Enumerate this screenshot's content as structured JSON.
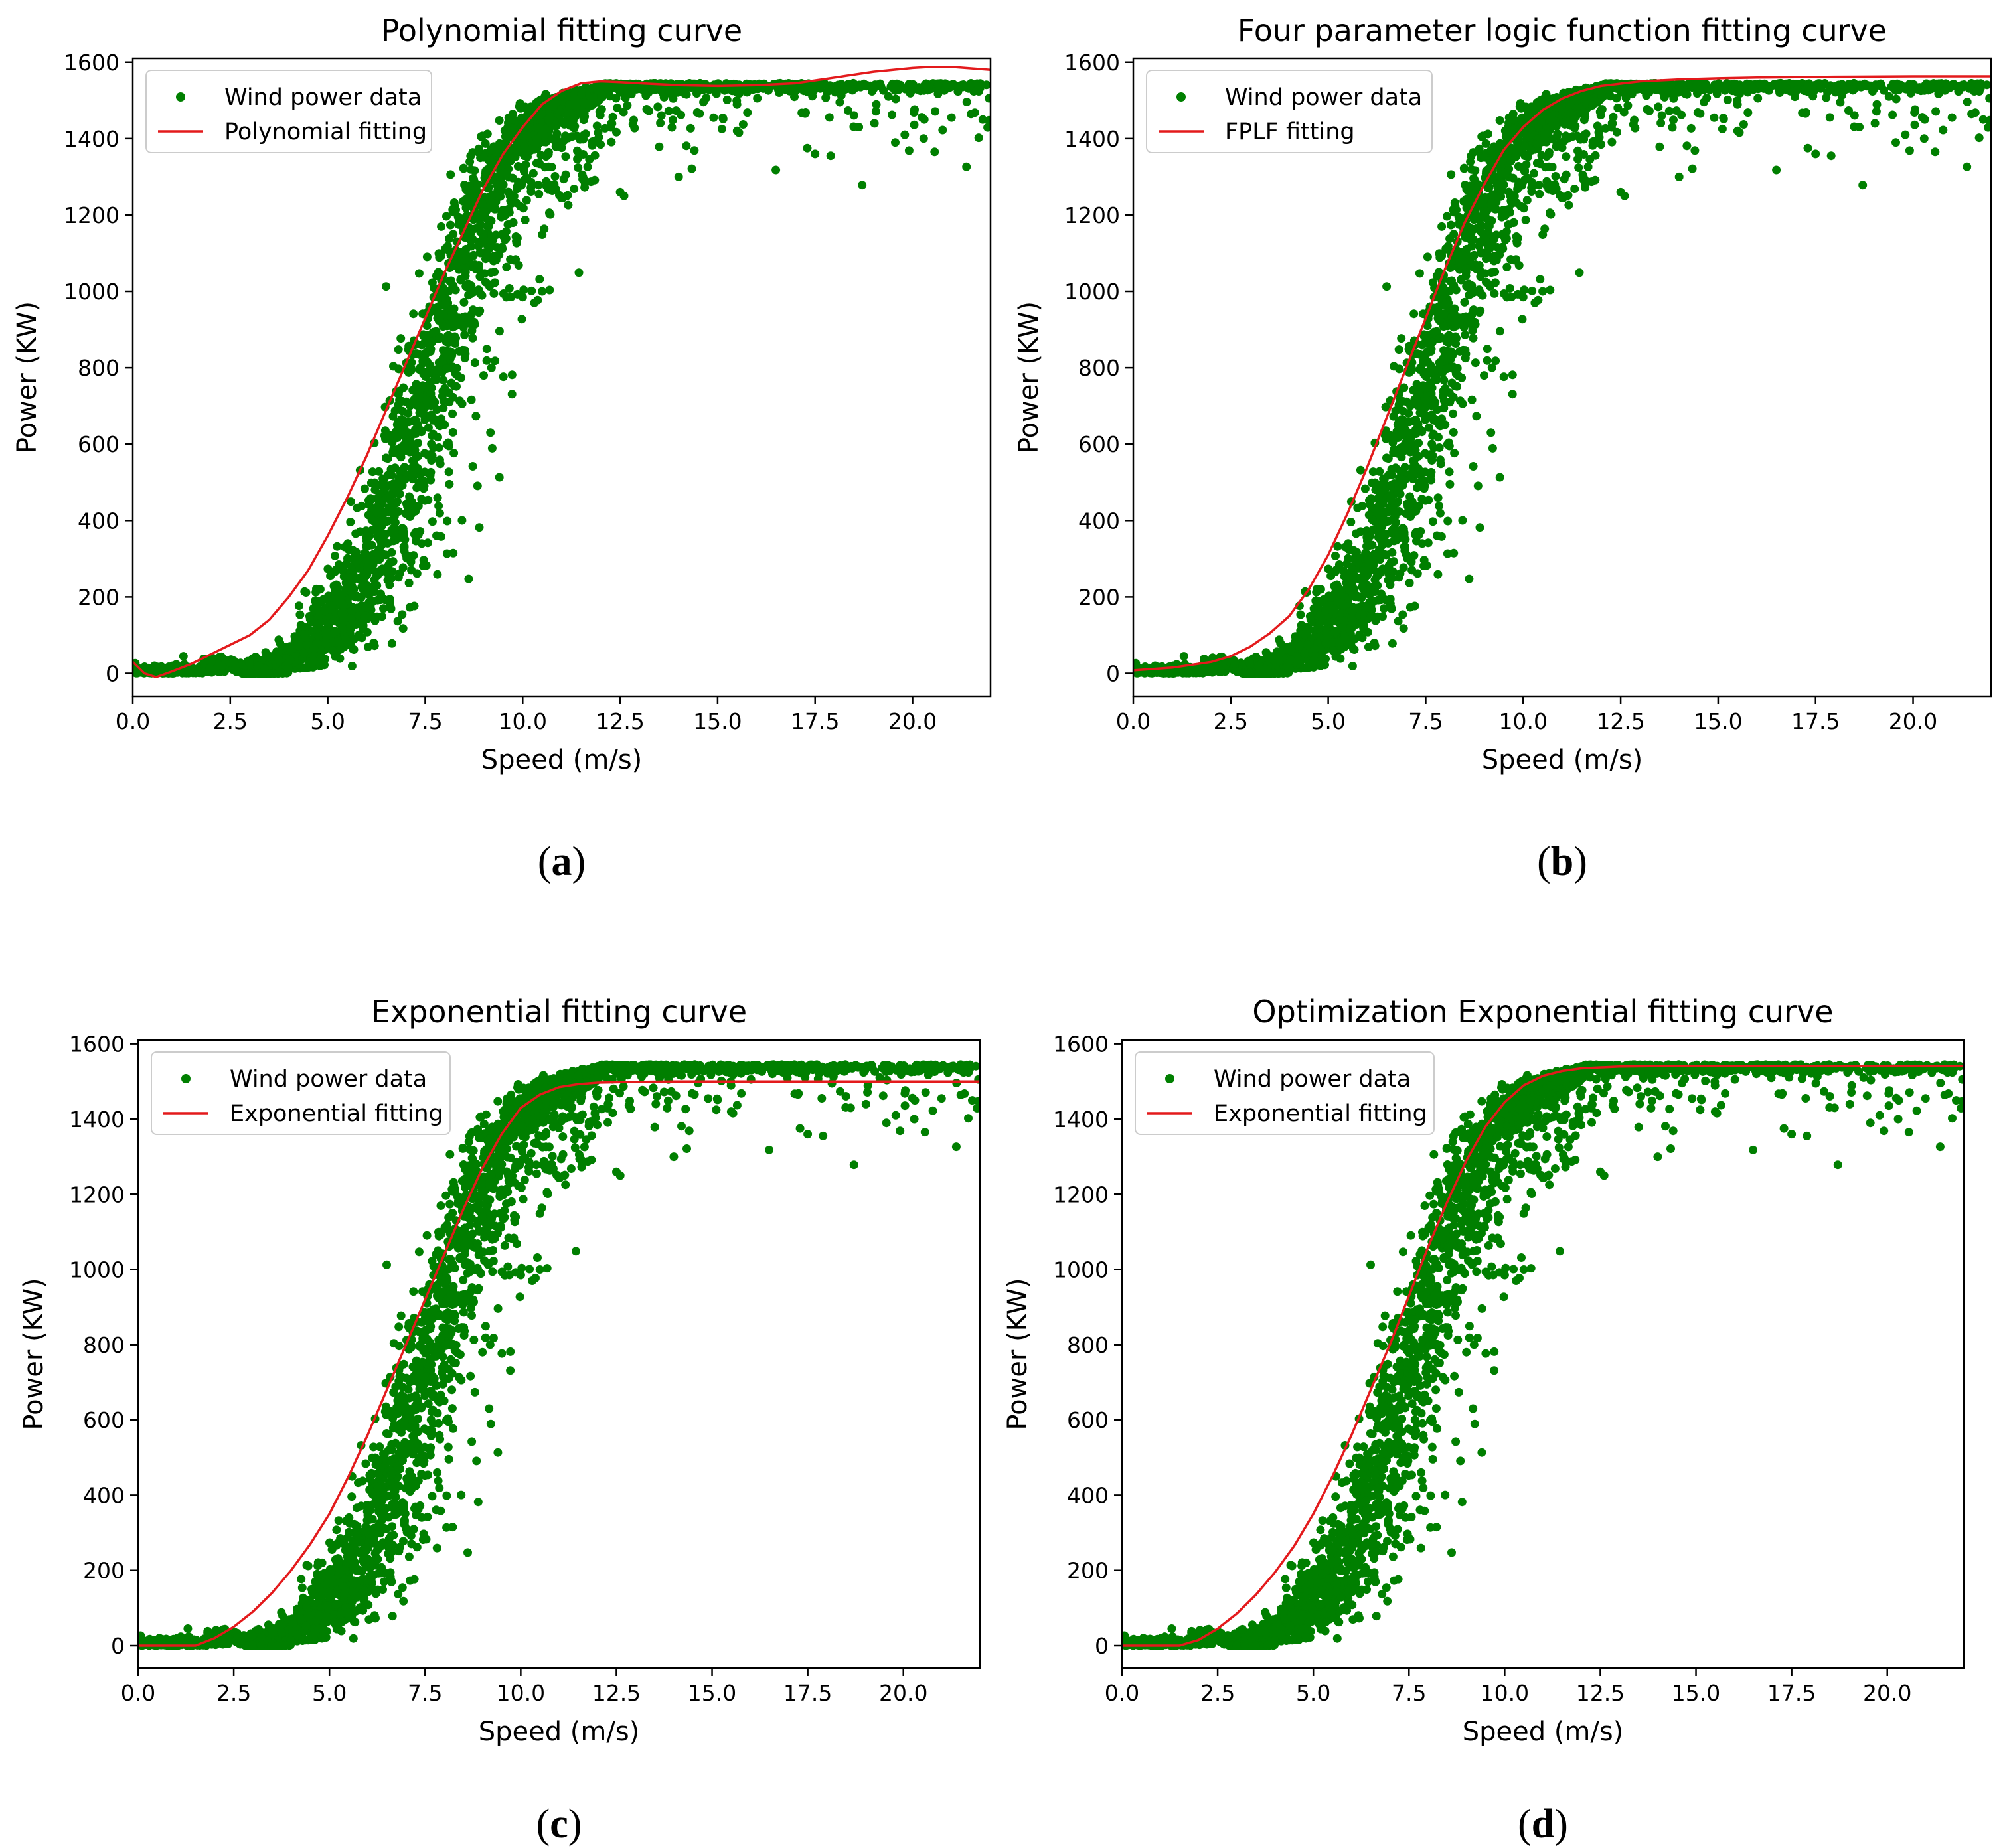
{
  "figure": {
    "background": "#ffffff",
    "scatter_color": "#007f00",
    "fit_color": "#e31a1c"
  },
  "chart_data": [
    {
      "type": "scatter",
      "panel_label": "(a)",
      "title": "Polynomial fitting curve",
      "xlabel": "Speed (m/s)",
      "ylabel": "Power (KW)",
      "xlim": [
        0,
        22
      ],
      "ylim": [
        -60,
        1610
      ],
      "xticks": [
        "0.0",
        "2.5",
        "5.0",
        "7.5",
        "10.0",
        "12.5",
        "15.0",
        "17.5",
        "20.0"
      ],
      "xtick_values": [
        0,
        2.5,
        5,
        7.5,
        10,
        12.5,
        15,
        17.5,
        20
      ],
      "yticks": [
        "0",
        "200",
        "400",
        "600",
        "800",
        "1000",
        "1200",
        "1400",
        "1600"
      ],
      "ytick_values": [
        0,
        200,
        400,
        600,
        800,
        1000,
        1200,
        1400,
        1600
      ],
      "legend": {
        "location": "upper left",
        "entries": [
          "Wind power data",
          "Polynomial fitting"
        ]
      },
      "series": [
        {
          "name": "Wind power data",
          "kind": "scatter",
          "description_values": {
            "cut_in_speed": 2.5,
            "rated_power": 1545,
            "rated_speed": 11.5
          }
        },
        {
          "name": "Polynomial fitting",
          "kind": "line",
          "x": [
            0,
            0.3,
            0.6,
            1,
            1.5,
            2,
            2.5,
            3,
            3.5,
            4,
            4.5,
            5,
            5.5,
            6,
            6.5,
            7,
            7.5,
            8,
            8.5,
            9,
            9.5,
            10,
            10.5,
            11,
            11.5,
            12,
            12.5,
            13,
            14,
            15,
            16,
            17,
            18,
            19,
            20,
            20.5,
            21,
            22
          ],
          "y": [
            30,
            0,
            -10,
            5,
            25,
            50,
            75,
            100,
            140,
            200,
            270,
            360,
            460,
            570,
            690,
            810,
            930,
            1050,
            1160,
            1270,
            1360,
            1430,
            1490,
            1525,
            1545,
            1550,
            1548,
            1545,
            1540,
            1538,
            1540,
            1545,
            1560,
            1575,
            1585,
            1588,
            1588,
            1580
          ]
        }
      ]
    },
    {
      "type": "scatter",
      "panel_label": "(b)",
      "title": "Four parameter logic function fitting curve",
      "xlabel": "Speed (m/s)",
      "ylabel": "Power (KW)",
      "xlim": [
        0,
        22
      ],
      "ylim": [
        -60,
        1610
      ],
      "xticks": [
        "0.0",
        "2.5",
        "5.0",
        "7.5",
        "10.0",
        "12.5",
        "15.0",
        "17.5",
        "20.0"
      ],
      "xtick_values": [
        0,
        2.5,
        5,
        7.5,
        10,
        12.5,
        15,
        17.5,
        20
      ],
      "yticks": [
        "0",
        "200",
        "400",
        "600",
        "800",
        "1000",
        "1200",
        "1400",
        "1600"
      ],
      "ytick_values": [
        0,
        200,
        400,
        600,
        800,
        1000,
        1200,
        1400,
        1600
      ],
      "legend": {
        "location": "upper left",
        "entries": [
          "Wind power data",
          "FPLF fitting"
        ]
      },
      "series": [
        {
          "name": "Wind power data",
          "kind": "scatter",
          "description_values": {
            "cut_in_speed": 2.5,
            "rated_power": 1545,
            "rated_speed": 11.5
          }
        },
        {
          "name": "FPLF fitting",
          "kind": "line",
          "x": [
            0,
            1,
            2,
            2.5,
            3,
            3.5,
            4,
            4.5,
            5,
            5.5,
            6,
            6.5,
            7,
            7.5,
            8,
            8.5,
            9,
            9.5,
            10,
            10.5,
            11,
            11.5,
            12,
            13,
            14,
            15,
            16,
            18,
            20,
            22
          ],
          "y": [
            8,
            15,
            30,
            45,
            70,
            105,
            150,
            220,
            310,
            420,
            540,
            670,
            800,
            930,
            1060,
            1180,
            1280,
            1370,
            1430,
            1475,
            1505,
            1525,
            1538,
            1550,
            1555,
            1558,
            1560,
            1562,
            1563,
            1563
          ]
        }
      ]
    },
    {
      "type": "scatter",
      "panel_label": "(c)",
      "title": "Exponential fitting curve",
      "xlabel": "Speed (m/s)",
      "ylabel": "Power (KW)",
      "xlim": [
        0,
        22
      ],
      "ylim": [
        -60,
        1610
      ],
      "xticks": [
        "0.0",
        "2.5",
        "5.0",
        "7.5",
        "10.0",
        "12.5",
        "15.0",
        "17.5",
        "20.0"
      ],
      "xtick_values": [
        0,
        2.5,
        5,
        7.5,
        10,
        12.5,
        15,
        17.5,
        20
      ],
      "yticks": [
        "0",
        "200",
        "400",
        "600",
        "800",
        "1000",
        "1200",
        "1400",
        "1600"
      ],
      "ytick_values": [
        0,
        200,
        400,
        600,
        800,
        1000,
        1200,
        1400,
        1600
      ],
      "legend": {
        "location": "upper left",
        "entries": [
          "Wind power data",
          "Exponential fitting"
        ]
      },
      "series": [
        {
          "name": "Wind power data",
          "kind": "scatter",
          "description_values": {
            "cut_in_speed": 2.5,
            "rated_power": 1545,
            "rated_speed": 11.5
          }
        },
        {
          "name": "Exponential fitting",
          "kind": "line",
          "x": [
            0,
            1.5,
            2,
            2.5,
            3,
            3.5,
            4,
            4.5,
            5,
            5.5,
            6,
            6.5,
            7,
            7.5,
            8,
            8.5,
            9,
            9.5,
            10,
            10.5,
            11,
            11.5,
            12,
            13,
            14,
            16,
            18,
            20,
            22
          ],
          "y": [
            0,
            0,
            20,
            50,
            90,
            140,
            200,
            270,
            350,
            450,
            560,
            680,
            800,
            920,
            1040,
            1160,
            1270,
            1360,
            1430,
            1465,
            1485,
            1493,
            1497,
            1499,
            1500,
            1500,
            1500,
            1500,
            1500
          ]
        }
      ]
    },
    {
      "type": "scatter",
      "panel_label": "(d)",
      "title": "Optimization Exponential fitting curve",
      "xlabel": "Speed (m/s)",
      "ylabel": "Power (KW)",
      "xlim": [
        0,
        22
      ],
      "ylim": [
        -60,
        1610
      ],
      "xticks": [
        "0.0",
        "2.5",
        "5.0",
        "7.5",
        "10.0",
        "12.5",
        "15.0",
        "17.5",
        "20.0"
      ],
      "xtick_values": [
        0,
        2.5,
        5,
        7.5,
        10,
        12.5,
        15,
        17.5,
        20
      ],
      "yticks": [
        "0",
        "200",
        "400",
        "600",
        "800",
        "1000",
        "1200",
        "1400",
        "1600"
      ],
      "ytick_values": [
        0,
        200,
        400,
        600,
        800,
        1000,
        1200,
        1400,
        1600
      ],
      "legend": {
        "location": "upper left",
        "entries": [
          "Wind power data",
          "Exponential fitting"
        ]
      },
      "series": [
        {
          "name": "Wind power data",
          "kind": "scatter",
          "description_values": {
            "cut_in_speed": 2.5,
            "rated_power": 1545,
            "rated_speed": 11.5
          }
        },
        {
          "name": "Exponential fitting",
          "kind": "line",
          "x": [
            0,
            1.5,
            2,
            2.5,
            3,
            3.5,
            4,
            4.5,
            5,
            5.5,
            6,
            6.5,
            7,
            7.5,
            8,
            8.5,
            9,
            9.5,
            10,
            10.5,
            11,
            11.5,
            12,
            13,
            14,
            16,
            18,
            20,
            22
          ],
          "y": [
            0,
            0,
            15,
            45,
            85,
            135,
            195,
            265,
            350,
            450,
            560,
            680,
            800,
            930,
            1060,
            1180,
            1290,
            1380,
            1445,
            1490,
            1515,
            1528,
            1535,
            1540,
            1541,
            1541,
            1541,
            1541,
            1541
          ]
        }
      ]
    }
  ]
}
